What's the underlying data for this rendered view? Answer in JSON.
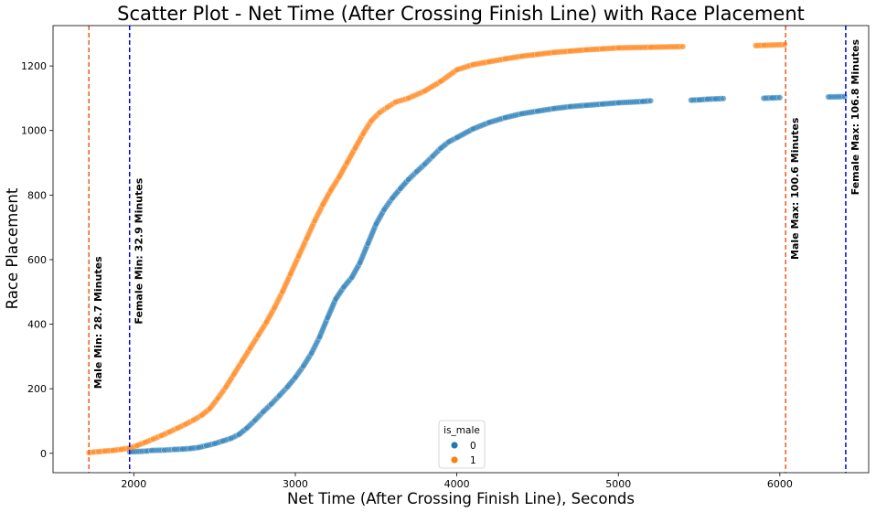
{
  "chart_data": {
    "type": "scatter",
    "title": "Scatter Plot - Net Time (After Crossing Finish Line) with Race Placement",
    "xlabel": "Net Time (After Crossing Finish Line), Seconds",
    "ylabel": "Race Placement",
    "xlim": [
      1500,
      6550
    ],
    "ylim": [
      -60,
      1325
    ],
    "xticks": [
      2000,
      3000,
      4000,
      5000,
      6000
    ],
    "yticks": [
      0,
      200,
      400,
      600,
      800,
      1000,
      1200
    ],
    "grid": false,
    "legend": {
      "title": "is_male",
      "placement": "bottom-center",
      "entries": [
        {
          "label": "0",
          "color": "#1f77b4"
        },
        {
          "label": "1",
          "color": "#ff7f0e"
        }
      ]
    },
    "series": [
      {
        "label": "0",
        "color": "#1f77b4",
        "points": [
          [
            1974,
            5
          ],
          [
            1990,
            5
          ],
          [
            2080,
            7
          ],
          [
            2110,
            9
          ],
          [
            2190,
            10
          ],
          [
            2250,
            12
          ],
          [
            2300,
            13
          ],
          [
            2350,
            15
          ],
          [
            2400,
            18
          ],
          [
            2450,
            24
          ],
          [
            2500,
            30
          ],
          [
            2550,
            38
          ],
          [
            2600,
            46
          ],
          [
            2650,
            58
          ],
          [
            2700,
            78
          ],
          [
            2750,
            102
          ],
          [
            2800,
            128
          ],
          [
            2850,
            152
          ],
          [
            2900,
            178
          ],
          [
            2950,
            205
          ],
          [
            3000,
            235
          ],
          [
            3050,
            270
          ],
          [
            3100,
            310
          ],
          [
            3150,
            360
          ],
          [
            3200,
            420
          ],
          [
            3250,
            478
          ],
          [
            3300,
            515
          ],
          [
            3350,
            545
          ],
          [
            3400,
            590
          ],
          [
            3450,
            650
          ],
          [
            3500,
            710
          ],
          [
            3550,
            755
          ],
          [
            3600,
            790
          ],
          [
            3650,
            820
          ],
          [
            3700,
            848
          ],
          [
            3750,
            872
          ],
          [
            3800,
            895
          ],
          [
            3850,
            920
          ],
          [
            3900,
            945
          ],
          [
            3950,
            965
          ],
          [
            4000,
            978
          ],
          [
            4100,
            1005
          ],
          [
            4200,
            1025
          ],
          [
            4300,
            1040
          ],
          [
            4400,
            1052
          ],
          [
            4500,
            1060
          ],
          [
            4600,
            1068
          ],
          [
            4700,
            1074
          ],
          [
            4800,
            1078
          ],
          [
            4900,
            1082
          ],
          [
            5000,
            1086
          ],
          [
            5150,
            1090
          ],
          [
            5200,
            1092
          ],
          [
            5450,
            1094
          ],
          [
            5500,
            1095
          ],
          [
            5550,
            1097
          ],
          [
            5600,
            1098
          ],
          [
            5650,
            1099
          ],
          [
            5900,
            1100
          ],
          [
            5950,
            1101
          ],
          [
            6000,
            1102
          ],
          [
            6300,
            1104
          ],
          [
            6400,
            1105
          ]
        ]
      },
      {
        "label": "1",
        "color": "#ff7f0e",
        "points": [
          [
            1722,
            2
          ],
          [
            1750,
            4
          ],
          [
            1780,
            5
          ],
          [
            1820,
            7
          ],
          [
            1870,
            9
          ],
          [
            1920,
            12
          ],
          [
            1970,
            16
          ],
          [
            2020,
            24
          ],
          [
            2070,
            34
          ],
          [
            2120,
            44
          ],
          [
            2170,
            55
          ],
          [
            2220,
            66
          ],
          [
            2270,
            78
          ],
          [
            2320,
            90
          ],
          [
            2370,
            103
          ],
          [
            2420,
            118
          ],
          [
            2470,
            138
          ],
          [
            2520,
            170
          ],
          [
            2570,
            205
          ],
          [
            2620,
            245
          ],
          [
            2670,
            285
          ],
          [
            2720,
            325
          ],
          [
            2770,
            365
          ],
          [
            2820,
            405
          ],
          [
            2870,
            450
          ],
          [
            2920,
            500
          ],
          [
            2970,
            555
          ],
          [
            3020,
            610
          ],
          [
            3070,
            665
          ],
          [
            3120,
            720
          ],
          [
            3170,
            770
          ],
          [
            3220,
            815
          ],
          [
            3270,
            855
          ],
          [
            3320,
            900
          ],
          [
            3370,
            945
          ],
          [
            3420,
            990
          ],
          [
            3470,
            1030
          ],
          [
            3520,
            1055
          ],
          [
            3570,
            1072
          ],
          [
            3620,
            1088
          ],
          [
            3700,
            1100
          ],
          [
            3800,
            1122
          ],
          [
            3900,
            1152
          ],
          [
            4000,
            1188
          ],
          [
            4100,
            1204
          ],
          [
            4200,
            1213
          ],
          [
            4300,
            1222
          ],
          [
            4400,
            1230
          ],
          [
            4500,
            1236
          ],
          [
            4600,
            1242
          ],
          [
            4700,
            1246
          ],
          [
            4800,
            1250
          ],
          [
            4900,
            1253
          ],
          [
            5000,
            1256
          ],
          [
            5200,
            1258
          ],
          [
            5400,
            1260
          ],
          [
            5850,
            1263
          ],
          [
            5900,
            1264
          ],
          [
            6030,
            1266
          ]
        ]
      }
    ],
    "vlines": [
      {
        "x": 1722,
        "color": "#f05a1e",
        "label": "Male Min: 28.7 Minutes",
        "label_y": 200
      },
      {
        "x": 1974,
        "color": "#0000ee",
        "label": "Female Min: 32.9 Minutes",
        "label_y": 400
      },
      {
        "x": 6036,
        "color": "#f05a1e",
        "label": "Male Max: 100.6 Minutes",
        "label_y": 600
      },
      {
        "x": 6408,
        "color": "#0000ee",
        "label": "Female Max: 106.8 Minutes",
        "label_y": 800
      }
    ]
  }
}
